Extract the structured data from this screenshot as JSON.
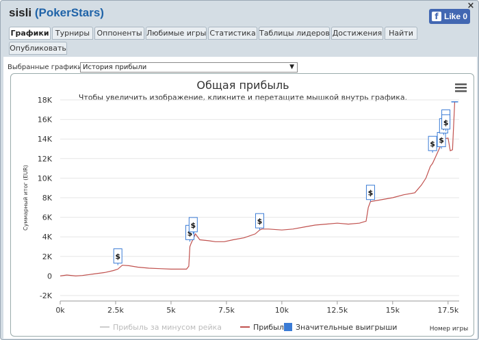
{
  "window": {
    "player": "sisli",
    "site": "PokerStars",
    "close_glyph": "×",
    "like_label": "Like 0"
  },
  "tabs": [
    {
      "label": "Графики",
      "active": true
    },
    {
      "label": "Турниры"
    },
    {
      "label": "Оппоненты"
    },
    {
      "label": "Любимые игры"
    },
    {
      "label": "Статистика"
    },
    {
      "label": "Таблицы лидеров"
    },
    {
      "label": "Достижения"
    },
    {
      "label": "Найти"
    },
    {
      "label": "Опубликовать"
    }
  ],
  "selector": {
    "label": "Выбранные графики:",
    "value": "История прибыли"
  },
  "chart_data": {
    "type": "line",
    "title": "Общая прибыль",
    "subtitle": "Чтобы увеличить изображение, кликните и перетащите мышкой внутрь графика.",
    "xlabel": "Номер игры",
    "ylabel": "Суммарный итог (EUR)",
    "xlim": [
      0,
      18000
    ],
    "ylim": [
      -2000,
      18000
    ],
    "x_ticks": [
      0,
      2500,
      5000,
      7500,
      10000,
      12500,
      15000,
      17500
    ],
    "x_tick_labels": [
      "0k",
      "2.5k",
      "5k",
      "7.5k",
      "10k",
      "12.5k",
      "15k",
      "17.5k"
    ],
    "y_ticks": [
      -2000,
      0,
      2000,
      4000,
      6000,
      8000,
      10000,
      12000,
      14000,
      16000,
      18000
    ],
    "y_tick_labels": [
      "-2K",
      "0",
      "2K",
      "4K",
      "6K",
      "8K",
      "10K",
      "12K",
      "14K",
      "16K",
      "18K"
    ],
    "legend_position": "bottom-center",
    "series": [
      {
        "name": "Прибыль за минусом рейка",
        "color": "#cccccc",
        "visible": false,
        "points": []
      },
      {
        "name": "Прибыль",
        "color": "#c0504d",
        "visible": true,
        "points": [
          [
            0,
            0
          ],
          [
            300,
            100
          ],
          [
            700,
            0
          ],
          [
            1000,
            50
          ],
          [
            1500,
            200
          ],
          [
            2000,
            350
          ],
          [
            2400,
            550
          ],
          [
            2600,
            700
          ],
          [
            2800,
            1100
          ],
          [
            3100,
            1050
          ],
          [
            3500,
            900
          ],
          [
            4000,
            800
          ],
          [
            4500,
            750
          ],
          [
            5000,
            700
          ],
          [
            5400,
            700
          ],
          [
            5700,
            700
          ],
          [
            5800,
            1000
          ],
          [
            5850,
            3000
          ],
          [
            5900,
            3300
          ],
          [
            6000,
            3800
          ],
          [
            6100,
            4300
          ],
          [
            6300,
            3700
          ],
          [
            6700,
            3600
          ],
          [
            7000,
            3500
          ],
          [
            7400,
            3500
          ],
          [
            7800,
            3700
          ],
          [
            8300,
            3900
          ],
          [
            8800,
            4300
          ],
          [
            9000,
            4700
          ],
          [
            9100,
            4800
          ],
          [
            9400,
            4800
          ],
          [
            10000,
            4700
          ],
          [
            10500,
            4800
          ],
          [
            11000,
            5000
          ],
          [
            11500,
            5200
          ],
          [
            12000,
            5300
          ],
          [
            12500,
            5400
          ],
          [
            13000,
            5300
          ],
          [
            13500,
            5400
          ],
          [
            13800,
            5600
          ],
          [
            13900,
            7000
          ],
          [
            14000,
            7600
          ],
          [
            14500,
            7800
          ],
          [
            15000,
            8000
          ],
          [
            15500,
            8300
          ],
          [
            16000,
            8500
          ],
          [
            16300,
            9300
          ],
          [
            16500,
            10000
          ],
          [
            16700,
            11200
          ],
          [
            16800,
            11500
          ],
          [
            16900,
            12000
          ],
          [
            17000,
            12500
          ],
          [
            17100,
            13000
          ],
          [
            17200,
            13500
          ],
          [
            17300,
            14000
          ],
          [
            17500,
            14100
          ],
          [
            17600,
            12800
          ],
          [
            17700,
            12900
          ],
          [
            17800,
            17800
          ]
        ]
      },
      {
        "name": "Значительные выигрыши",
        "color": "#3a7bd5",
        "visible": true,
        "markers": [
          [
            2600,
            1100
          ],
          [
            5850,
            3500
          ],
          [
            6000,
            4300
          ],
          [
            9000,
            4700
          ],
          [
            14000,
            7600
          ],
          [
            16800,
            12600
          ],
          [
            17200,
            13000
          ],
          [
            17300,
            14400
          ],
          [
            17400,
            15300
          ],
          [
            17400,
            14800
          ]
        ],
        "marker_glyph": "$"
      }
    ]
  }
}
